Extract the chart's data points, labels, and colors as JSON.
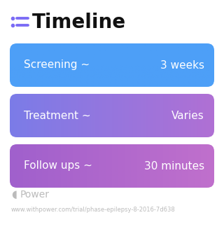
{
  "title": "Timeline",
  "title_fontsize": 20,
  "title_fontweight": "bold",
  "title_color": "#111111",
  "background_color": "#ffffff",
  "icon_color": "#7b6cf5",
  "bars": [
    {
      "label": "Screening ~",
      "value": "3 weeks",
      "color_left": "#4d9ff7",
      "color_right": "#4d9ff7"
    },
    {
      "label": "Treatment ~",
      "value": "Varies",
      "color_left": "#7b7ce8",
      "color_right": "#b070d4"
    },
    {
      "label": "Follow ups ~",
      "value": "30 minutes",
      "color_left": "#a060cc",
      "color_right": "#c070cc"
    }
  ],
  "bar_height": 0.62,
  "text_color": "#ffffff",
  "label_fontsize": 11,
  "value_fontsize": 11,
  "footer_text": "Power",
  "footer_url": "www.withpower.com/trial/phase-epilepsy-8-2016-7d638",
  "footer_color": "#bbbbbb",
  "footer_fontsize": 6
}
